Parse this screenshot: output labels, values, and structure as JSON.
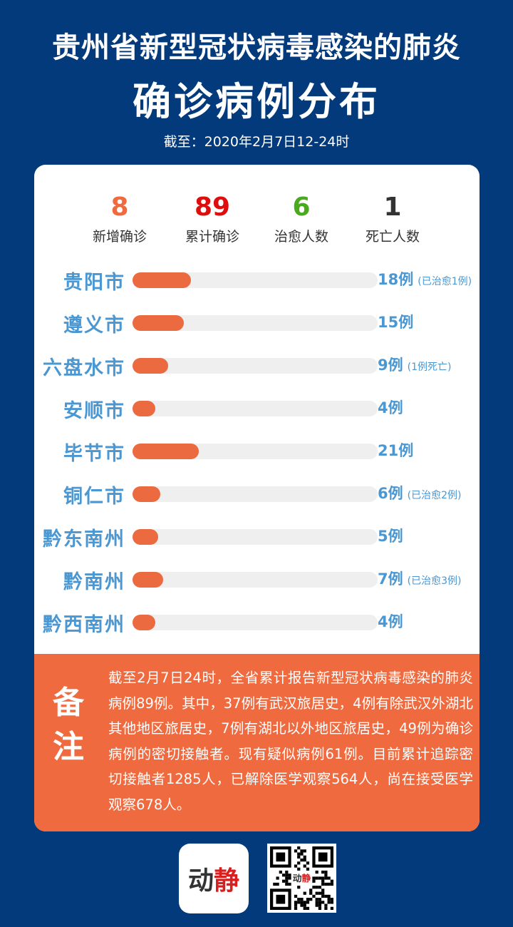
{
  "header": {
    "title_line1": "贵州省新型冠状病毒感染的肺炎",
    "title_line2": "确诊病例分布",
    "date": "截至：2020年2月7日12-24时"
  },
  "stats": [
    {
      "value": "8",
      "label": "新增确诊",
      "color": "#ef6a3e"
    },
    {
      "value": "89",
      "label": "累计确诊",
      "color": "#e00d0d"
    },
    {
      "value": "6",
      "label": "治愈人数",
      "color": "#4aa91c"
    },
    {
      "value": "1",
      "label": "死亡人数",
      "color": "#333333"
    }
  ],
  "chart_data": {
    "type": "bar",
    "orientation": "horizontal",
    "categories": [
      "贵阳市",
      "遵义市",
      "六盘水市",
      "安顺市",
      "毕节市",
      "铜仁市",
      "黔东南州",
      "黔南州",
      "黔西南州"
    ],
    "values": [
      18,
      15,
      9,
      4,
      21,
      6,
      5,
      7,
      4
    ],
    "value_labels": [
      "18例",
      "15例",
      "9例",
      "4例",
      "21例",
      "6例",
      "5例",
      "7例",
      "4例"
    ],
    "notes": [
      "(已治愈1例)",
      "",
      "(1例死亡)",
      "",
      "",
      "(已治愈2例)",
      "",
      "(已治愈3例)",
      ""
    ],
    "bar_color": "#ec6a40",
    "track_color": "#efefef",
    "label_color": "#4b97d2"
  },
  "remark": {
    "heading": "备注",
    "text": "截至2月7日24时，全省累计报告新型冠状病毒感染的肺炎病例89例。其中，37例有武汉旅居史，4例有除武汉外湖北其他地区旅居史，7例有湖北以外地区旅居史，49例为确诊病例的密切接触者。现有疑似病例61例。目前累计追踪密切接触者1285人，已解除医学观察564人，尚在接受医学观察678人。"
  },
  "footer": {
    "logo_part1": "动",
    "logo_part2": "静"
  }
}
